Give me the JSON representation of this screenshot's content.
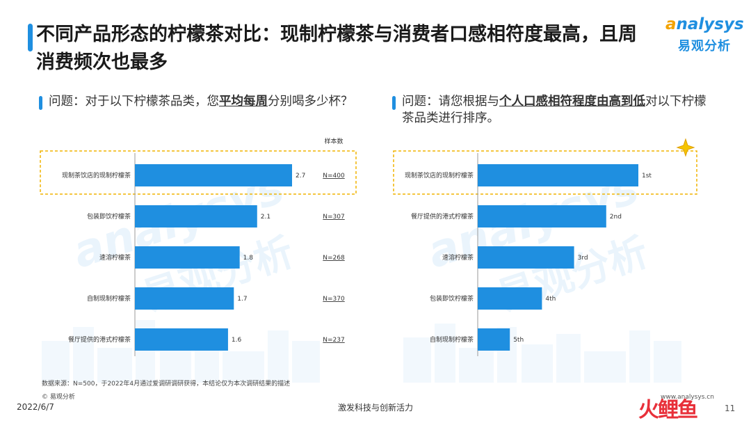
{
  "title": "不同产品形态的柠檬茶对比：现制柠檬茶与消费者口感相符度最高，且周消费频次也最多",
  "logo": {
    "word_a": "a",
    "word_rest": "nalysys",
    "cn": "易观分析"
  },
  "watermark": {
    "en": "analysys",
    "cn": "易观分析"
  },
  "left": {
    "question_pre": "问题：对于以下柠檬茶品类，您",
    "question_em": "平均每周",
    "question_post": "分别喝多少杯？",
    "sample_header": "样本数"
  },
  "right": {
    "question_pre": "问题：请您根据与",
    "question_em": "个人口感相符程度由高到低",
    "question_post": "对以下柠檬茶品类进行排序。"
  },
  "chart_data": [
    {
      "type": "bar",
      "orientation": "horizontal",
      "categories": [
        "现制茶饮店的现制柠檬茶",
        "包装即饮柠檬茶",
        "速溶柠檬茶",
        "自制现制柠檬茶",
        "餐厅提供的港式柠檬茶"
      ],
      "values": [
        2.7,
        2.1,
        1.8,
        1.7,
        1.6
      ],
      "value_labels": [
        "2.7",
        "2.1",
        "1.8",
        "1.7",
        "1.6"
      ],
      "sample_sizes": [
        "N=400",
        "N=307",
        "N=268",
        "N=370",
        "N=237"
      ],
      "highlight_index": 0,
      "color": "#1f8fe0"
    },
    {
      "type": "bar",
      "orientation": "horizontal",
      "categories": [
        "现制茶饮店的现制柠檬茶",
        "餐厅提供的港式柠檬茶",
        "速溶柠檬茶",
        "包装即饮柠檬茶",
        "自制现制柠檬茶"
      ],
      "values": [
        5,
        4,
        3,
        2,
        1
      ],
      "value_labels": [
        "1st",
        "2nd",
        "3rd",
        "4th",
        "5th"
      ],
      "highlight_index": 0,
      "color": "#1f8fe0"
    }
  ],
  "footer": {
    "source": "数据来源：N=500，于2022年4月通过爱调研调研获得，本结论仅为本次调研结果的描述",
    "copyright": "© 易观分析",
    "date": "2022/6/7",
    "slogan": "激发科技与创新活力",
    "site": "www.analysys.cn",
    "page": "11",
    "stamp": "火鲤鱼"
  }
}
